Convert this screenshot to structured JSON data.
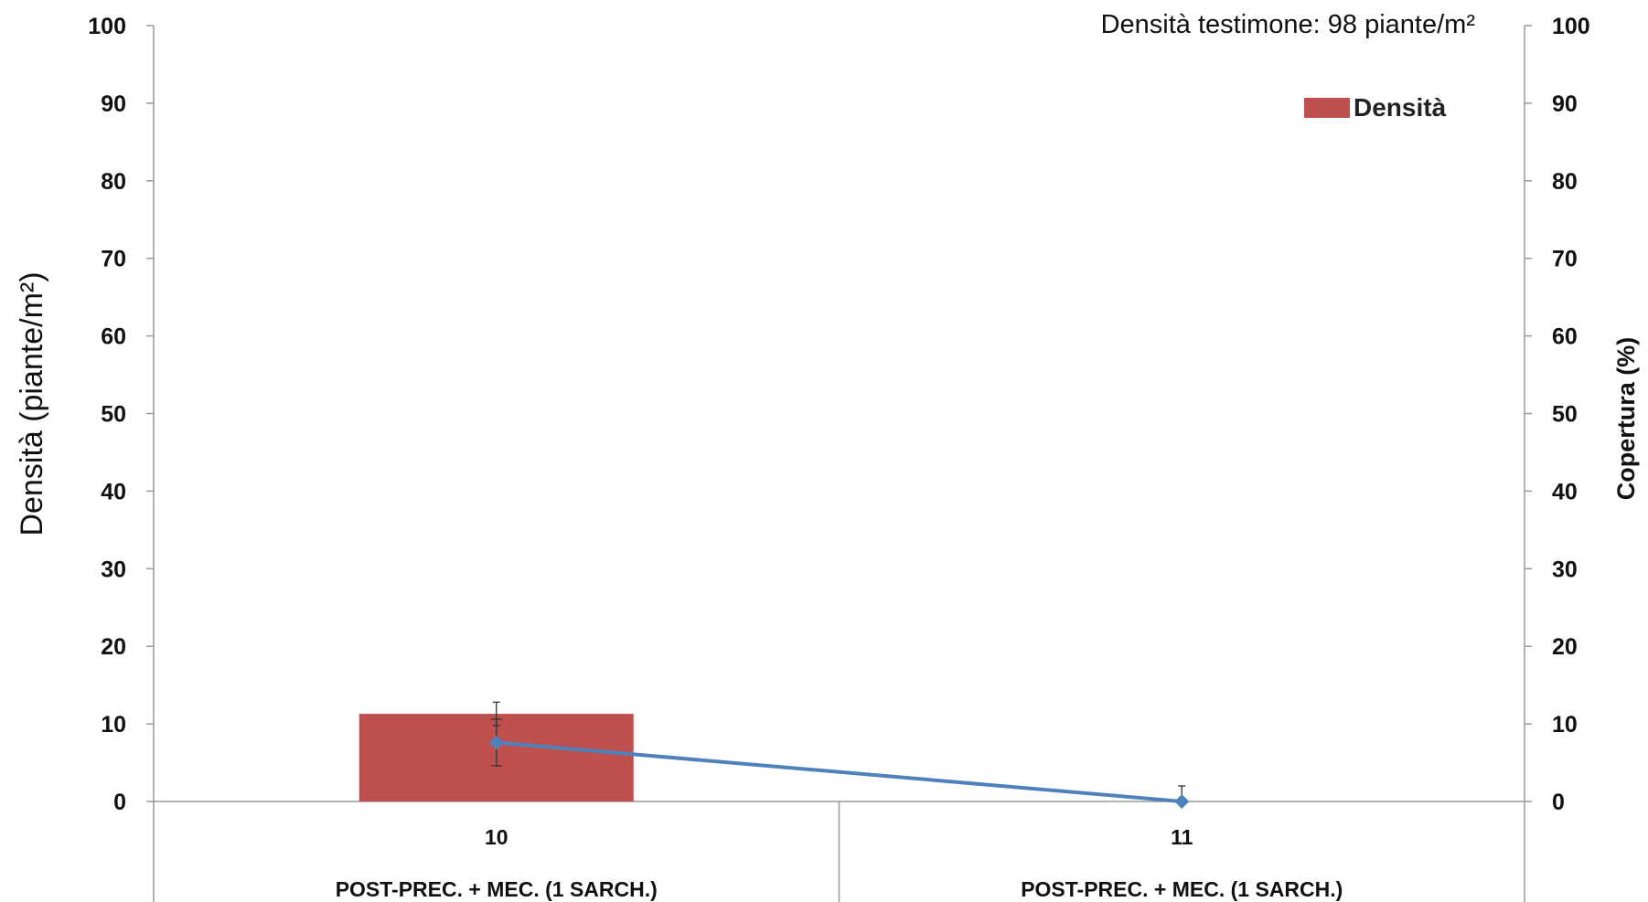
{
  "chart_data": {
    "type": "bar",
    "note": "Densità  testimone: 98 piante/m²",
    "categories": [
      "10",
      "11"
    ],
    "category_groups": [
      "POST-PREC. +  MEC. (1 SARCH.)",
      "POST-PREC. +  MEC. (1 SARCH.)"
    ],
    "ylabel": "Densità (piante/m²)",
    "ylabel_right": "Copertura (%)",
    "ylim": [
      0,
      100
    ],
    "ylim_right": [
      0,
      100
    ],
    "yticks": [
      0,
      10,
      20,
      30,
      40,
      50,
      60,
      70,
      80,
      90,
      100
    ],
    "legend": {
      "position": "top-right",
      "entries": [
        "Densità"
      ]
    },
    "grid": false,
    "series": [
      {
        "name": "Densità",
        "type": "bar",
        "axis": "left",
        "color": "#c0504d",
        "values": [
          11.3,
          0
        ],
        "errors": [
          1.5,
          2.0
        ]
      },
      {
        "type": "line",
        "axis": "right",
        "color": "#4f81bd",
        "marker": "diamond",
        "values": [
          7.6,
          0
        ],
        "errors": [
          3.0,
          0
        ]
      }
    ]
  }
}
